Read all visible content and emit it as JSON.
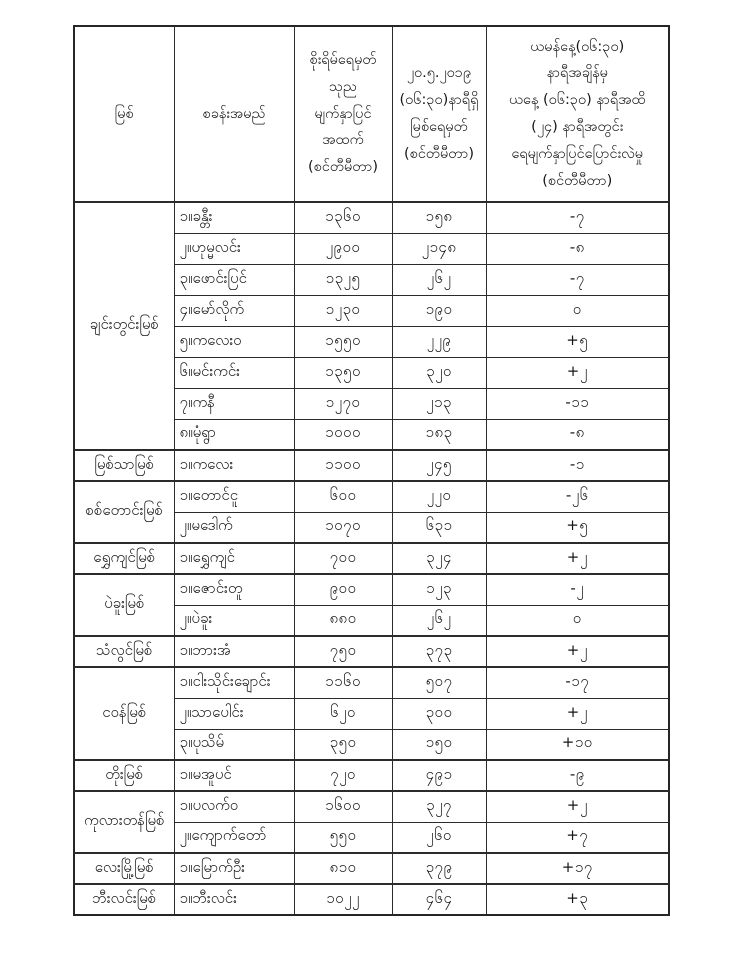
{
  "page": {
    "background_color": "#ffffff",
    "text_color": "#161616",
    "border_color": "#2b2b2b"
  },
  "table": {
    "headers": {
      "river": "မြစ်",
      "station": "စခန်းအမည်",
      "danger_level": "စိုးရိမ်ရေမှတ်\nသုည\nမျက်နှာပြင်\nအထက်\n(စင်တီမီတာ)",
      "water_level": "၂၀.၅.၂၀၁၉\n(၀၆:၃၀)နာရီရှိ\nမြစ်ရေမှတ်\n(စင်တီမီတာ)",
      "change_24h": "ယမန်နေ့(၀၆:၃၀)\nနာရီအချိန်မှ\nယနေ့ (၀၆:၃၀) နာရီအထိ\n(၂၄) နာရီအတွင်း\nရေမျက်နှာပြင်ပြောင်းလဲမှု\n(စင်တီမီတာ)"
    },
    "rivers": [
      {
        "name": "ချင်းတွင်းမြစ်",
        "stations": [
          {
            "station": "၁။ခန္တီး",
            "danger_level": "၁၃၆၀",
            "water_level": "၁၅၈",
            "change_24h": "-၇"
          },
          {
            "station": "၂။ဟုမ္မလင်း",
            "danger_level": "၂၉၀၀",
            "water_level": "၂၁၄၈",
            "change_24h": "-၈"
          },
          {
            "station": "၃။ဖောင်းပြင်",
            "danger_level": "၁၃၂၅",
            "water_level": "၂၆၂",
            "change_24h": "-၇"
          },
          {
            "station": "၄။မော်လိုက်",
            "danger_level": "၁၂၃၀",
            "water_level": "၁၉၀",
            "change_24h": "၀"
          },
          {
            "station": "၅။ကလေးဝ",
            "danger_level": "၁၅၅၀",
            "water_level": "၂၂၉",
            "change_24h": "+၅"
          },
          {
            "station": "၆။မင်းကင်း",
            "danger_level": "၁၃၅၀",
            "water_level": "၃၂၀",
            "change_24h": "+၂"
          },
          {
            "station": "၇။ကနီ",
            "danger_level": "၁၂၇၀",
            "water_level": "၂၁၃",
            "change_24h": "-၁၁"
          },
          {
            "station": "၈။မုံရွာ",
            "danger_level": "၁၀၀၀",
            "water_level": "၁၈၃",
            "change_24h": "-၈"
          }
        ]
      },
      {
        "name": "မြစ်သာမြစ်",
        "stations": [
          {
            "station": "၁။ကလေး",
            "danger_level": "၁၁၀၀",
            "water_level": "၂၄၅",
            "change_24h": "-၁"
          }
        ]
      },
      {
        "name": "စစ်တောင်းမြစ်",
        "stations": [
          {
            "station": "၁။တောင်ငူ",
            "danger_level": "၆၀၀",
            "water_level": "၂၂၀",
            "change_24h": "-၂၆"
          },
          {
            "station": "၂။မဒေါက်",
            "danger_level": "၁၀၇၀",
            "water_level": "၆၃၁",
            "change_24h": "+၅"
          }
        ]
      },
      {
        "name": "ရွှေကျင်မြစ်",
        "stations": [
          {
            "station": "၁။ရွှေကျင်",
            "danger_level": "၇၀၀",
            "water_level": "၃၂၄",
            "change_24h": "+၂"
          }
        ]
      },
      {
        "name": "ပဲခူးမြစ်",
        "stations": [
          {
            "station": "၁။ဇောင်းတူ",
            "danger_level": "၉၀၀",
            "water_level": "၁၂၃",
            "change_24h": "-၂"
          },
          {
            "station": "၂။ပဲခူး",
            "danger_level": "၈၈၀",
            "water_level": "၂၆၂",
            "change_24h": "၀"
          }
        ]
      },
      {
        "name": "သံလွင်မြစ်",
        "stations": [
          {
            "station": "၁။ဘားအံ",
            "danger_level": "၇၅၀",
            "water_level": "၃၇၃",
            "change_24h": "+၂"
          }
        ]
      },
      {
        "name": "ငဝန်မြစ်",
        "stations": [
          {
            "station": "၁။ငါးသိုင်းချောင်း",
            "danger_level": "၁၁၆၀",
            "water_level": "၅၀၇",
            "change_24h": "-၁၇"
          },
          {
            "station": "၂။သာပေါင်း",
            "danger_level": "၆၂၀",
            "water_level": "၃၀၀",
            "change_24h": "+၂"
          },
          {
            "station": "၃။ပုသိမ်",
            "danger_level": "၃၅၀",
            "water_level": "၁၅၀",
            "change_24h": "+၁၀"
          }
        ]
      },
      {
        "name": "တိုးမြစ်",
        "stations": [
          {
            "station": "၁။မအူပင်",
            "danger_level": "၇၂၀",
            "water_level": "၄၉၁",
            "change_24h": "-၉"
          }
        ]
      },
      {
        "name": "ကုလားတန်မြစ်",
        "stations": [
          {
            "station": "၁။ပလက်ဝ",
            "danger_level": "၁၆၀၀",
            "water_level": "၃၂၇",
            "change_24h": "+၂"
          },
          {
            "station": "၂။ကျောက်တော်",
            "danger_level": "၅၅၀",
            "water_level": "၂၆၀",
            "change_24h": "+၇"
          }
        ]
      },
      {
        "name": "လေးမြို့မြစ်",
        "stations": [
          {
            "station": "၁။မြောက်ဦး",
            "danger_level": "၈၁၀",
            "water_level": "၃၇၉",
            "change_24h": "+၁၇"
          }
        ]
      },
      {
        "name": "ဘီးလင်းမြစ်",
        "stations": [
          {
            "station": "၁။ဘီးလင်း",
            "danger_level": "၁၀၂၂",
            "water_level": "၄၆၄",
            "change_24h": "+၃"
          }
        ]
      }
    ]
  }
}
